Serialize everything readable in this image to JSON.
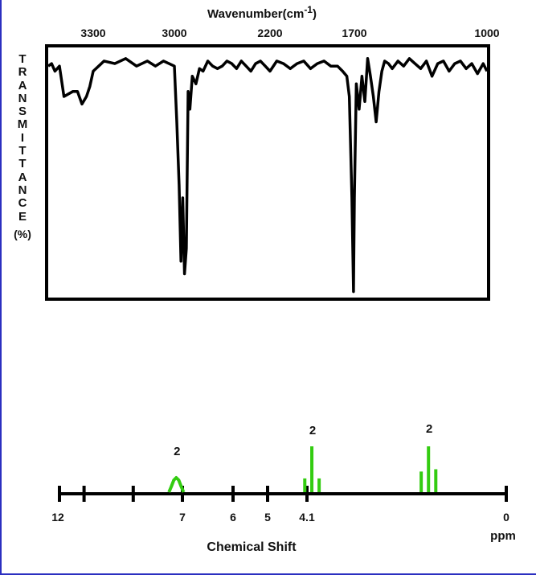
{
  "ir": {
    "title": "Wavenumber(cm",
    "title_sup": "-1",
    "ylabel_letters": [
      "T",
      "R",
      "A",
      "N",
      "S",
      "M",
      "I",
      "T",
      "T",
      "A",
      "N",
      "C",
      "E"
    ],
    "ylabel_unit": "(%)",
    "ticks": [
      "3300",
      "3000",
      "2200",
      "1700",
      "1000"
    ]
  },
  "nmr": {
    "xlabel": "Chemical Shift",
    "unit": "ppm",
    "tick_labels": [
      "12",
      "7",
      "6",
      "5",
      "4.1",
      "0"
    ],
    "peak_labels": [
      "2",
      "2",
      "2"
    ],
    "peak_color": "#33cc11"
  },
  "chart_data": [
    {
      "type": "line",
      "title": "Wavenumber(cm-1)",
      "xlabel": "Wavenumber(cm-1)",
      "ylabel": "TRANSMITTANCE (%)",
      "x_ticks": [
        3300,
        3000,
        2200,
        1700,
        1000
      ],
      "x_reversed": true,
      "series": [
        {
          "x": [
            3700,
            3670,
            3640,
            3600,
            3560,
            3520,
            3480,
            3440,
            3400,
            3360,
            3330,
            3300,
            3260,
            3220,
            3180,
            3140,
            3100,
            3070,
            3040,
            3020,
            3000,
            2980,
            2960,
            2945,
            2930,
            2915,
            2900,
            2885,
            2870,
            2850,
            2820,
            2790,
            2760,
            2720,
            2680,
            2640,
            2600,
            2560,
            2520,
            2480,
            2440,
            2400,
            2360,
            2320,
            2280,
            2240,
            2200,
            2160,
            2120,
            2080,
            2040,
            2000,
            1960,
            1920,
            1880,
            1840,
            1800,
            1770,
            1745,
            1730,
            1715,
            1705,
            1700,
            1690,
            1675,
            1660,
            1645,
            1630,
            1615,
            1600,
            1585,
            1570,
            1555,
            1540,
            1520,
            1500,
            1470,
            1440,
            1410,
            1380,
            1350,
            1320,
            1290,
            1260,
            1230,
            1200,
            1170,
            1140,
            1110,
            1080,
            1050,
            1020,
            1000
          ],
          "y": [
            92,
            93,
            90,
            92,
            80,
            81,
            82,
            82,
            77,
            80,
            84,
            90,
            94,
            93,
            95,
            92,
            94,
            92,
            94,
            93,
            92,
            70,
            45,
            15,
            40,
            10,
            20,
            82,
            75,
            88,
            85,
            91,
            90,
            94,
            92,
            91,
            92,
            94,
            93,
            91,
            94,
            92,
            90,
            93,
            94,
            92,
            90,
            94,
            93,
            91,
            93,
            94,
            91,
            93,
            94,
            92,
            92,
            90,
            88,
            80,
            40,
            3,
            40,
            85,
            75,
            88,
            78,
            95,
            88,
            80,
            70,
            82,
            90,
            94,
            93,
            91,
            94,
            92,
            95,
            93,
            91,
            94,
            88,
            93,
            94,
            90,
            93,
            94,
            91,
            93,
            89,
            93,
            90
          ]
        }
      ]
    },
    {
      "type": "bar",
      "title": "",
      "xlabel": "Chemical Shift",
      "x_unit": "ppm",
      "x_ticks": [
        12,
        7,
        6,
        5,
        4.1,
        0
      ],
      "x_reversed": true,
      "series": [
        {
          "x": [
            7.45,
            7.35,
            7.25,
            7.15,
            7.05
          ],
          "values": [
            0.25,
            0.65,
            0.8,
            0.65,
            0.25
          ]
        },
        {
          "x": [
            4.15,
            4.0,
            3.85
          ],
          "values": [
            0.3,
            1.0,
            0.3
          ]
        },
        {
          "x": [
            1.75,
            1.6,
            1.45
          ],
          "values": [
            0.45,
            1.0,
            0.5
          ]
        }
      ],
      "annotations": [
        {
          "x": 7.25,
          "text": "2"
        },
        {
          "x": 4.0,
          "text": "2"
        },
        {
          "x": 1.6,
          "text": "2"
        }
      ]
    }
  ]
}
